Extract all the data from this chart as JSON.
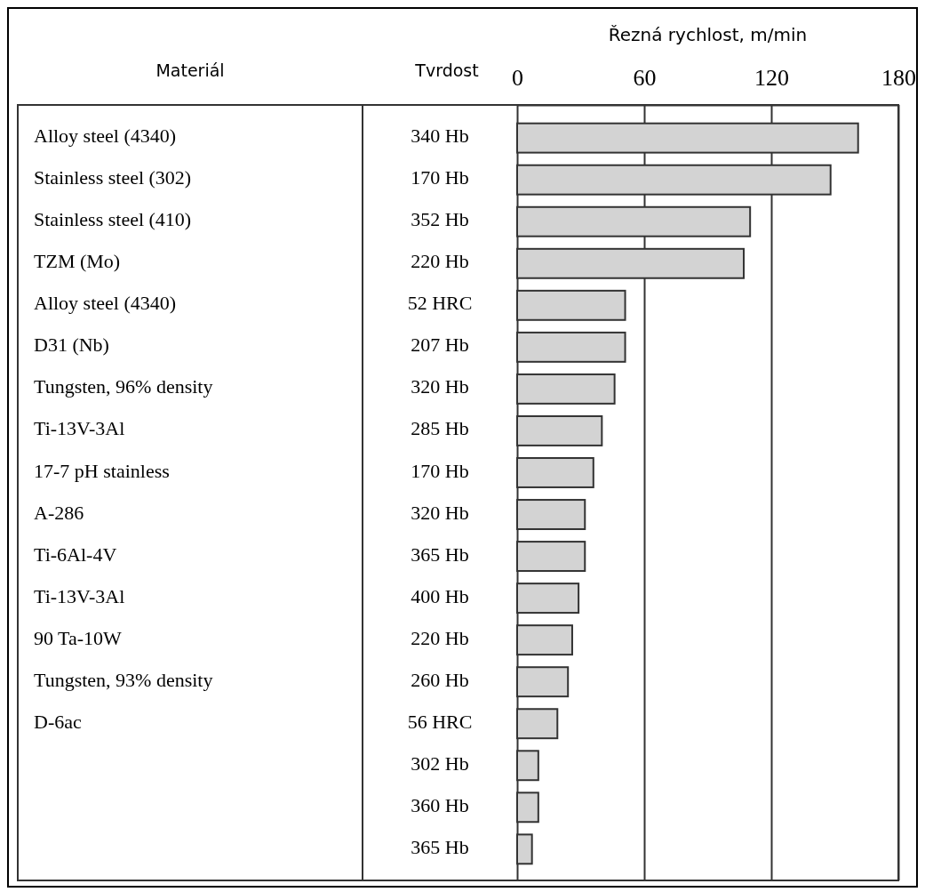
{
  "chart_data": {
    "type": "bar",
    "orientation": "horizontal",
    "x2label": "Řezná rychlost, m/min",
    "ylabel": "Materiál",
    "y2label": "Tvrdost",
    "categories": [
      "Alloy steel (4340)",
      "Stainless steel (302)",
      "Stainless steel (410)",
      "TZM (Mo)",
      "Alloy steel (4340)",
      "D31 (Nb)",
      "Tungsten, 96% density",
      "Ti-13V-3Al",
      "17-7 pH stainless",
      "A-286",
      "Ti-6Al-4V",
      "Ti-13V-3Al",
      "90 Ta-10W",
      "Tungsten, 93% density",
      "D-6ac",
      null,
      null,
      null
    ],
    "y2_categories": [
      "340 Hb",
      "170 Hb",
      "352 Hb",
      "220 Hb",
      "52 HRC",
      "207 Hb",
      "320 Hb",
      "285 Hb",
      "170 Hb",
      "320 Hb",
      "365 Hb",
      "400 Hb",
      "220 Hb",
      "260 Hb",
      "56 HRC",
      "302 Hb",
      "360 Hb",
      "365 Hb"
    ],
    "series": [
      {
        "axis": "x2",
        "color": "#d3d3d3",
        "values": [
          161,
          148,
          110,
          107,
          51,
          51,
          46,
          40,
          36,
          32,
          32,
          29,
          26,
          24,
          19,
          10,
          10,
          7
        ]
      }
    ],
    "x2lim": [
      0,
      180
    ],
    "x2ticks": [
      0,
      60,
      120,
      180
    ],
    "grid": "x"
  }
}
